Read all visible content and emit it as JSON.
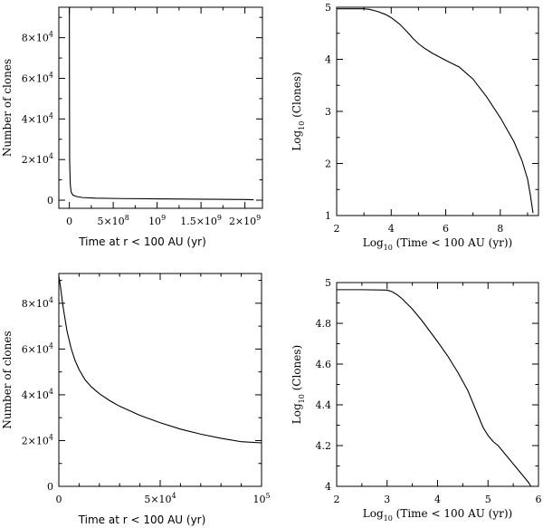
{
  "chart_data": [
    {
      "type": "line",
      "panel": "top-left",
      "xlabel": "Time at r < 100 AU (yr)",
      "ylabel": "Number of clones",
      "xlim": [
        -120000000.0,
        2200000000.0
      ],
      "ylim": [
        -4000,
        95000
      ],
      "xticks": [
        {
          "v": 0,
          "base": "0",
          "exp": ""
        },
        {
          "v": 500000000,
          "base": "5×10",
          "exp": "8"
        },
        {
          "v": 1000000000,
          "base": "10",
          "exp": "9"
        },
        {
          "v": 1500000000,
          "base": "1.5×10",
          "exp": "9"
        },
        {
          "v": 2000000000,
          "base": "2×10",
          "exp": "9"
        }
      ],
      "xminor": [
        250000000,
        750000000,
        1250000000,
        1750000000
      ],
      "yticks": [
        {
          "v": 0,
          "base": "0",
          "exp": ""
        },
        {
          "v": 20000,
          "base": "2×10",
          "exp": "4"
        },
        {
          "v": 40000,
          "base": "4×10",
          "exp": "4"
        },
        {
          "v": 60000,
          "base": "6×10",
          "exp": "4"
        },
        {
          "v": 80000,
          "base": "8×10",
          "exp": "4"
        }
      ],
      "yminor": [
        10000,
        30000,
        50000,
        70000,
        90000
      ],
      "series": [
        {
          "x": [
            0,
            1000000,
            3000000,
            10000000,
            20000000,
            40000000,
            80000000,
            150000000,
            300000000,
            600000000,
            1000000000,
            1500000000,
            2000000000,
            2100000000
          ],
          "y": [
            95000,
            60000,
            20000,
            8000,
            4000,
            2500,
            1800,
            1300,
            1000,
            800,
            650,
            500,
            300,
            200
          ]
        }
      ]
    },
    {
      "type": "line",
      "panel": "top-right",
      "xlabel": "Log10 (Time < 100 AU (yr))",
      "ylabel": "Log10 (Clones)",
      "xlim": [
        2,
        9.4
      ],
      "ylim": [
        1,
        5
      ],
      "xticks": [
        {
          "v": 2,
          "base": "2",
          "exp": ""
        },
        {
          "v": 4,
          "base": "4",
          "exp": ""
        },
        {
          "v": 6,
          "base": "6",
          "exp": ""
        },
        {
          "v": 8,
          "base": "8",
          "exp": ""
        }
      ],
      "xminor": [
        3,
        5,
        7,
        9
      ],
      "yticks": [
        {
          "v": 1,
          "base": "1",
          "exp": ""
        },
        {
          "v": 2,
          "base": "2",
          "exp": ""
        },
        {
          "v": 3,
          "base": "3",
          "exp": ""
        },
        {
          "v": 4,
          "base": "4",
          "exp": ""
        },
        {
          "v": 5,
          "base": "5",
          "exp": ""
        }
      ],
      "yminor": [
        1.5,
        2.5,
        3.5,
        4.5
      ],
      "series": [
        {
          "x": [
            2.0,
            2.5,
            3.0,
            3.2,
            3.5,
            3.8,
            4.0,
            4.3,
            4.6,
            4.8,
            5.0,
            5.2,
            5.5,
            6.0,
            6.5,
            7.0,
            7.5,
            8.0,
            8.5,
            8.8,
            9.0,
            9.1,
            9.2
          ],
          "y": [
            4.97,
            4.97,
            4.97,
            4.96,
            4.92,
            4.86,
            4.8,
            4.68,
            4.52,
            4.4,
            4.3,
            4.22,
            4.12,
            3.98,
            3.85,
            3.62,
            3.28,
            2.88,
            2.42,
            2.05,
            1.7,
            1.4,
            1.05
          ]
        }
      ]
    },
    {
      "type": "line",
      "panel": "bottom-left",
      "xlabel": "Time at r < 100 AU (yr)",
      "ylabel": "Number of clones",
      "xlim": [
        0,
        100000
      ],
      "ylim": [
        0,
        93000
      ],
      "xticks": [
        {
          "v": 0,
          "base": "0",
          "exp": ""
        },
        {
          "v": 50000,
          "base": "5×10",
          "exp": "4"
        },
        {
          "v": 100000,
          "base": "10",
          "exp": "5"
        }
      ],
      "xminor": [
        10000,
        20000,
        30000,
        40000,
        60000,
        70000,
        80000,
        90000
      ],
      "yticks": [
        {
          "v": 0,
          "base": "0",
          "exp": ""
        },
        {
          "v": 20000,
          "base": "2×10",
          "exp": "4"
        },
        {
          "v": 40000,
          "base": "4×10",
          "exp": "4"
        },
        {
          "v": 60000,
          "base": "6×10",
          "exp": "4"
        },
        {
          "v": 80000,
          "base": "8×10",
          "exp": "4"
        }
      ],
      "yminor": [
        10000,
        30000,
        50000,
        70000,
        90000
      ],
      "series": [
        {
          "x": [
            0,
            1000,
            2000,
            4000,
            6000,
            8000,
            10000,
            13000,
            16000,
            20000,
            25000,
            30000,
            40000,
            50000,
            60000,
            70000,
            80000,
            90000,
            100000
          ],
          "y": [
            92000,
            86000,
            79000,
            68000,
            60500,
            55000,
            51000,
            46500,
            43500,
            40500,
            37500,
            35000,
            31000,
            27800,
            25000,
            22800,
            21000,
            19500,
            19000
          ]
        }
      ]
    },
    {
      "type": "line",
      "panel": "bottom-right",
      "xlabel": "Log10 (Time < 100 AU (yr))",
      "ylabel": "Log10 (Clones)",
      "xlim": [
        2,
        6
      ],
      "ylim": [
        4,
        5
      ],
      "xticks": [
        {
          "v": 2,
          "base": "2",
          "exp": ""
        },
        {
          "v": 3,
          "base": "3",
          "exp": ""
        },
        {
          "v": 4,
          "base": "4",
          "exp": ""
        },
        {
          "v": 5,
          "base": "5",
          "exp": ""
        },
        {
          "v": 6,
          "base": "6",
          "exp": ""
        }
      ],
      "xminor": [
        2.5,
        3.5,
        4.5,
        5.5
      ],
      "yticks": [
        {
          "v": 4,
          "base": "4",
          "exp": ""
        },
        {
          "v": 4.2,
          "base": "4.2",
          "exp": ""
        },
        {
          "v": 4.4,
          "base": "4.4",
          "exp": ""
        },
        {
          "v": 4.6,
          "base": "4.6",
          "exp": ""
        },
        {
          "v": 4.8,
          "base": "4.8",
          "exp": ""
        },
        {
          "v": 5,
          "base": "5",
          "exp": ""
        }
      ],
      "yminor": [
        4.1,
        4.3,
        4.5,
        4.7,
        4.9
      ],
      "series": [
        {
          "x": [
            2.0,
            2.5,
            3.0,
            3.1,
            3.2,
            3.3,
            3.5,
            3.7,
            4.0,
            4.2,
            4.4,
            4.6,
            4.8,
            4.9,
            5.0,
            5.1,
            5.2,
            5.4,
            5.6,
            5.8,
            5.85
          ],
          "y": [
            4.965,
            4.965,
            4.963,
            4.955,
            4.94,
            4.92,
            4.87,
            4.81,
            4.71,
            4.64,
            4.56,
            4.47,
            4.35,
            4.29,
            4.25,
            4.22,
            4.2,
            4.14,
            4.08,
            4.02,
            4.0
          ]
        }
      ]
    }
  ]
}
